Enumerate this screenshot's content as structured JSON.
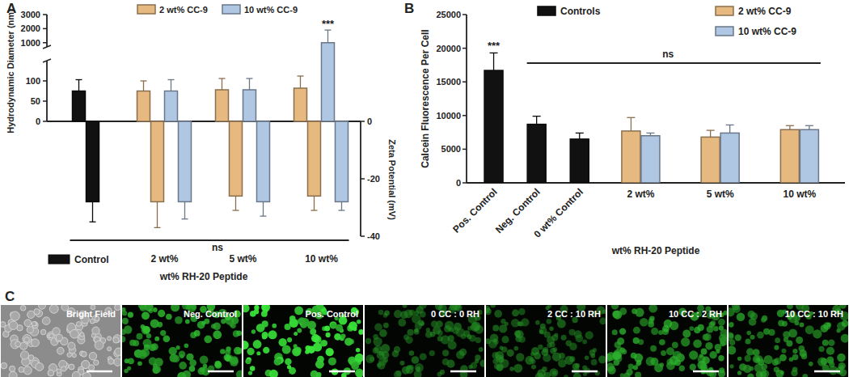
{
  "chart_data": [
    {
      "type": "bar",
      "title": "A",
      "x_label": "wt% RH-20 Peptide",
      "y_label": "Hydrodynamic Diameter (nm)",
      "y2_label": "Zeta Potential (mV)",
      "categories": [
        null,
        "2 wt%",
        "5 wt%",
        "10 wt%"
      ],
      "series": [
        {
          "name": "Control",
          "color": "#111111",
          "values": [
            75,
            null,
            null,
            null
          ],
          "errors": [
            28,
            null,
            null,
            null
          ],
          "zeta": [
            -28,
            null,
            null,
            null
          ],
          "zeta_errors": [
            7,
            null,
            null,
            null
          ]
        },
        {
          "name": "2 wt% CC-9",
          "color": "#e6b980",
          "values": [
            null,
            75,
            78,
            82
          ],
          "errors": [
            null,
            25,
            28,
            30
          ],
          "zeta": [
            null,
            -28,
            -26,
            -26
          ],
          "zeta_errors": [
            null,
            9,
            5,
            5
          ]
        },
        {
          "name": "10 wt% CC-9",
          "color": "#b0c7e3",
          "values": [
            null,
            75,
            78,
            1000
          ],
          "errors": [
            null,
            28,
            28,
            900
          ],
          "zeta": [
            null,
            -28,
            -28,
            -28
          ],
          "zeta_errors": [
            null,
            6,
            5,
            3
          ],
          "significance": [
            null,
            null,
            null,
            "***"
          ]
        }
      ],
      "ylim": [
        0,
        3000
      ],
      "ybreak": [
        150,
        700
      ],
      "yticks": [
        0,
        50,
        100,
        1000,
        2000,
        3000
      ],
      "y2lim": [
        -40,
        0
      ],
      "y2ticks": [
        0,
        -20,
        -40
      ],
      "comparison": "ns"
    },
    {
      "type": "bar",
      "title": "B",
      "x_label": "wt% RH-20 Peptide",
      "y_label": "Calcein Fluorescence Per Cell",
      "categories": [
        "Pos. Control",
        "Neg. Control",
        "0 wt% Control",
        "2 wt%",
        "5 wt%",
        "10 wt%"
      ],
      "series": [
        {
          "name": "Controls",
          "color": "#111111",
          "values": [
            16700,
            8700,
            6500,
            null,
            null,
            null
          ],
          "errors": [
            2600,
            1200,
            900,
            null,
            null,
            null
          ],
          "significance": [
            "***",
            null,
            null,
            null,
            null,
            null
          ]
        },
        {
          "name": "2 wt% CC-9",
          "color": "#e6b980",
          "values": [
            null,
            null,
            null,
            7700,
            6800,
            7900
          ],
          "errors": [
            null,
            null,
            null,
            2000,
            1000,
            600
          ]
        },
        {
          "name": "10 wt% CC-9",
          "color": "#b0c7e3",
          "values": [
            null,
            null,
            null,
            7000,
            7400,
            7900
          ],
          "errors": [
            null,
            null,
            null,
            400,
            1200,
            600
          ]
        }
      ],
      "ylim": [
        0,
        25000
      ],
      "yticks": [
        0,
        5000,
        10000,
        15000,
        20000,
        25000
      ],
      "comparison": "ns"
    }
  ],
  "panel_c": {
    "title": "C",
    "images": [
      "Bright Field",
      "Neg. Control",
      "Pos. Control",
      "0 CC : 0 RH",
      "2 CC : 10 RH",
      "10 CC : 2 RH",
      "10 CC : 10 RH"
    ]
  }
}
